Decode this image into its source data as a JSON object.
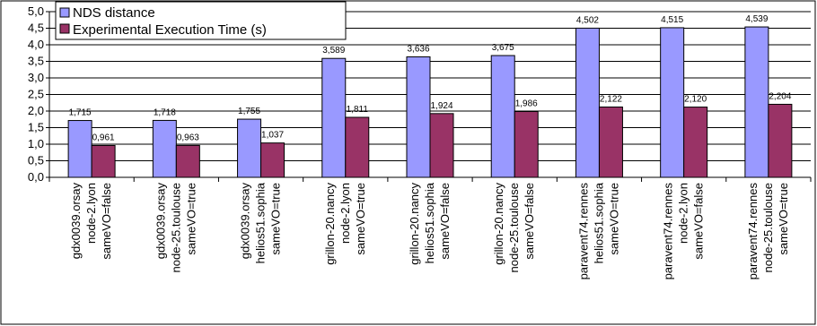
{
  "chart_data": {
    "type": "bar",
    "ylim": [
      0,
      5.0
    ],
    "ytick_step": 0.5,
    "yticks": [
      "0,0",
      "0,5",
      "1,0",
      "1,5",
      "2,0",
      "2,5",
      "3,0",
      "3,5",
      "4,0",
      "4,5",
      "5,0"
    ],
    "grid": true,
    "legend_position": "top-left",
    "categories": [
      [
        "gdx0039.orsay",
        "node-2.lyon",
        "sameVO=false"
      ],
      [
        "gdx0039.orsay",
        "node-25.toulouse",
        "sameVO=true"
      ],
      [
        "gdx0039.orsay",
        "helios51.sophia",
        "sameVO=true"
      ],
      [
        "grillon-20.nancy",
        "node-2.lyon",
        "sameVO=true"
      ],
      [
        "grillon-20.nancy",
        "helios51.sophia",
        "sameVO=false"
      ],
      [
        "grillon-20.nancy",
        "node-25.toulouse",
        "sameVO=false"
      ],
      [
        "paravent74.rennes",
        "helios51.sophia",
        "sameVO=true"
      ],
      [
        "paravent74.rennes",
        "node-2.lyon",
        "sameVO=false"
      ],
      [
        "paravent74.rennes",
        "node-25.toulouse",
        "sameVO=true"
      ]
    ],
    "series": [
      {
        "name": "NDS distance",
        "color": "#9999ff",
        "values": [
          1.715,
          1.718,
          1.755,
          3.589,
          3.636,
          3.675,
          4.502,
          4.515,
          4.539
        ],
        "labels": [
          "1,715",
          "1,718",
          "1,755",
          "3,589",
          "3,636",
          "3,675",
          "4,502",
          "4,515",
          "4,539"
        ]
      },
      {
        "name": "Experimental Execution Time (s)",
        "color": "#993366",
        "values": [
          0.961,
          0.963,
          1.037,
          1.811,
          1.924,
          1.986,
          2.122,
          2.12,
          2.204
        ],
        "labels": [
          "0,961",
          "0,963",
          "1,037",
          "1,811",
          "1,924",
          "1,986",
          "2,122",
          "2,120",
          "2,204"
        ]
      }
    ]
  }
}
